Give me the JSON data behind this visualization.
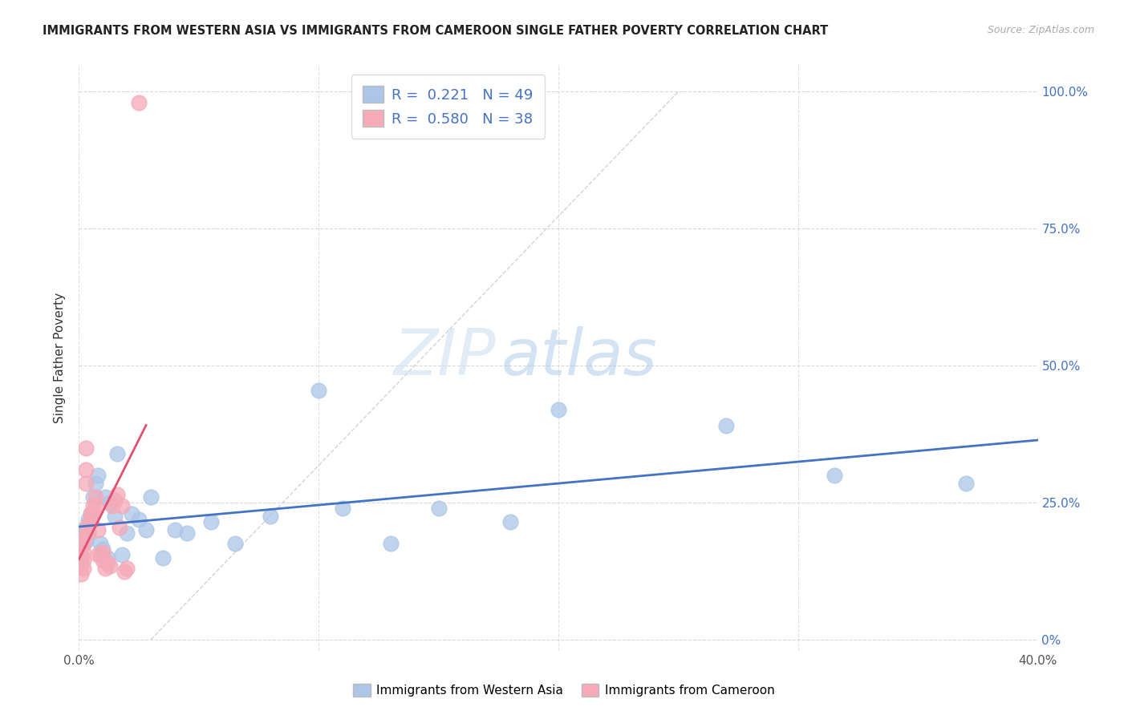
{
  "title": "IMMIGRANTS FROM WESTERN ASIA VS IMMIGRANTS FROM CAMEROON SINGLE FATHER POVERTY CORRELATION CHART",
  "source": "Source: ZipAtlas.com",
  "ylabel": "Single Father Poverty",
  "x_min": 0.0,
  "x_max": 0.4,
  "y_min": -0.02,
  "y_max": 1.05,
  "x_ticks": [
    0.0,
    0.1,
    0.2,
    0.3,
    0.4
  ],
  "x_tick_labels": [
    "0.0%",
    "",
    "",
    "",
    "40.0%"
  ],
  "y_ticks": [
    0.0,
    0.25,
    0.5,
    0.75,
    1.0
  ],
  "y_tick_labels_right": [
    "0%",
    "25.0%",
    "50.0%",
    "75.0%",
    "100.0%"
  ],
  "legend_labels": [
    "Immigrants from Western Asia",
    "Immigrants from Cameroon"
  ],
  "R_western": 0.221,
  "N_western": 49,
  "R_cameroon": 0.58,
  "N_cameroon": 38,
  "blue_color": "#adc6e8",
  "pink_color": "#f5aab8",
  "blue_line_color": "#4472c4",
  "pink_line_color": "#e05070",
  "watermark_zip": "ZIP",
  "watermark_atlas": "atlas",
  "western_asia_x": [
    0.001,
    0.001,
    0.001,
    0.001,
    0.001,
    0.002,
    0.002,
    0.002,
    0.002,
    0.003,
    0.003,
    0.003,
    0.003,
    0.004,
    0.004,
    0.004,
    0.005,
    0.005,
    0.006,
    0.007,
    0.008,
    0.009,
    0.01,
    0.011,
    0.012,
    0.013,
    0.015,
    0.016,
    0.018,
    0.02,
    0.022,
    0.025,
    0.028,
    0.03,
    0.035,
    0.04,
    0.045,
    0.055,
    0.065,
    0.08,
    0.1,
    0.11,
    0.13,
    0.15,
    0.18,
    0.2,
    0.27,
    0.315,
    0.37
  ],
  "western_asia_y": [
    0.195,
    0.19,
    0.185,
    0.18,
    0.175,
    0.2,
    0.195,
    0.185,
    0.175,
    0.205,
    0.195,
    0.185,
    0.18,
    0.22,
    0.21,
    0.195,
    0.23,
    0.22,
    0.26,
    0.285,
    0.3,
    0.175,
    0.165,
    0.26,
    0.15,
    0.25,
    0.225,
    0.34,
    0.155,
    0.195,
    0.23,
    0.22,
    0.2,
    0.26,
    0.15,
    0.2,
    0.195,
    0.215,
    0.175,
    0.225,
    0.455,
    0.24,
    0.175,
    0.24,
    0.215,
    0.42,
    0.39,
    0.3,
    0.285
  ],
  "cameroon_x": [
    0.001,
    0.001,
    0.001,
    0.001,
    0.001,
    0.001,
    0.002,
    0.002,
    0.002,
    0.002,
    0.002,
    0.003,
    0.003,
    0.003,
    0.004,
    0.004,
    0.005,
    0.005,
    0.006,
    0.006,
    0.007,
    0.007,
    0.008,
    0.008,
    0.009,
    0.01,
    0.01,
    0.011,
    0.012,
    0.013,
    0.014,
    0.015,
    0.016,
    0.017,
    0.018,
    0.019,
    0.02,
    0.025
  ],
  "cameroon_y": [
    0.18,
    0.17,
    0.155,
    0.145,
    0.135,
    0.12,
    0.19,
    0.175,
    0.16,
    0.145,
    0.13,
    0.35,
    0.31,
    0.285,
    0.21,
    0.195,
    0.23,
    0.215,
    0.245,
    0.23,
    0.26,
    0.245,
    0.2,
    0.155,
    0.155,
    0.16,
    0.145,
    0.13,
    0.14,
    0.135,
    0.245,
    0.255,
    0.265,
    0.205,
    0.245,
    0.125,
    0.13,
    0.98
  ],
  "pink_line_x_start": 0.0,
  "pink_line_x_end": 0.028,
  "blue_line_x_start": 0.0,
  "blue_line_x_end": 0.4
}
